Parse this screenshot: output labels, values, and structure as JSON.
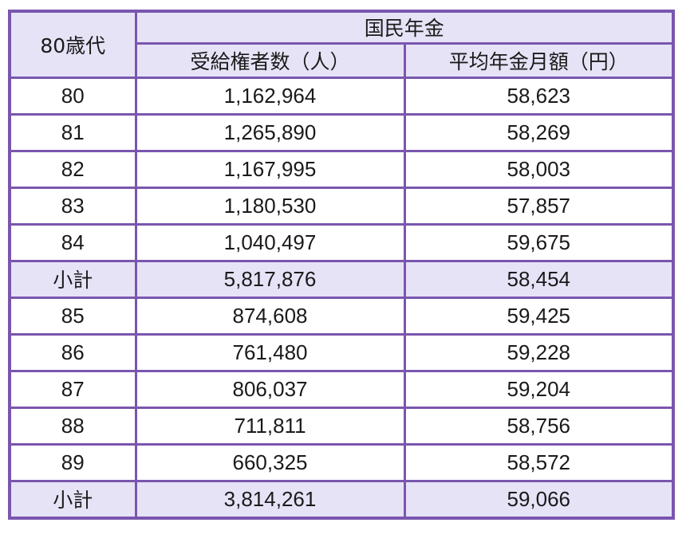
{
  "table": {
    "header": {
      "age_group": "80歳代",
      "group_title": "国民年金",
      "col_recipients": "受給権者数（人）",
      "col_avg_monthly": "平均年金月額（円）"
    },
    "rows": [
      {
        "age": "80",
        "recipients": "1,162,964",
        "avg_monthly": "58,623",
        "subtotal": false
      },
      {
        "age": "81",
        "recipients": "1,265,890",
        "avg_monthly": "58,269",
        "subtotal": false
      },
      {
        "age": "82",
        "recipients": "1,167,995",
        "avg_monthly": "58,003",
        "subtotal": false
      },
      {
        "age": "83",
        "recipients": "1,180,530",
        "avg_monthly": "57,857",
        "subtotal": false
      },
      {
        "age": "84",
        "recipients": "1,040,497",
        "avg_monthly": "59,675",
        "subtotal": false
      },
      {
        "age": "小計",
        "recipients": "5,817,876",
        "avg_monthly": "58,454",
        "subtotal": true
      },
      {
        "age": "85",
        "recipients": "874,608",
        "avg_monthly": "59,425",
        "subtotal": false
      },
      {
        "age": "86",
        "recipients": "761,480",
        "avg_monthly": "59,228",
        "subtotal": false
      },
      {
        "age": "87",
        "recipients": "806,037",
        "avg_monthly": "59,204",
        "subtotal": false
      },
      {
        "age": "88",
        "recipients": "711,811",
        "avg_monthly": "58,756",
        "subtotal": false
      },
      {
        "age": "89",
        "recipients": "660,325",
        "avg_monthly": "58,572",
        "subtotal": false
      },
      {
        "age": "小計",
        "recipients": "3,814,261",
        "avg_monthly": "59,066",
        "subtotal": true
      }
    ]
  },
  "colors": {
    "border": "#7a56ae",
    "header_bg": "#e6e3f7",
    "row_bg": "#ffffff",
    "text": "#1a1a1a"
  }
}
